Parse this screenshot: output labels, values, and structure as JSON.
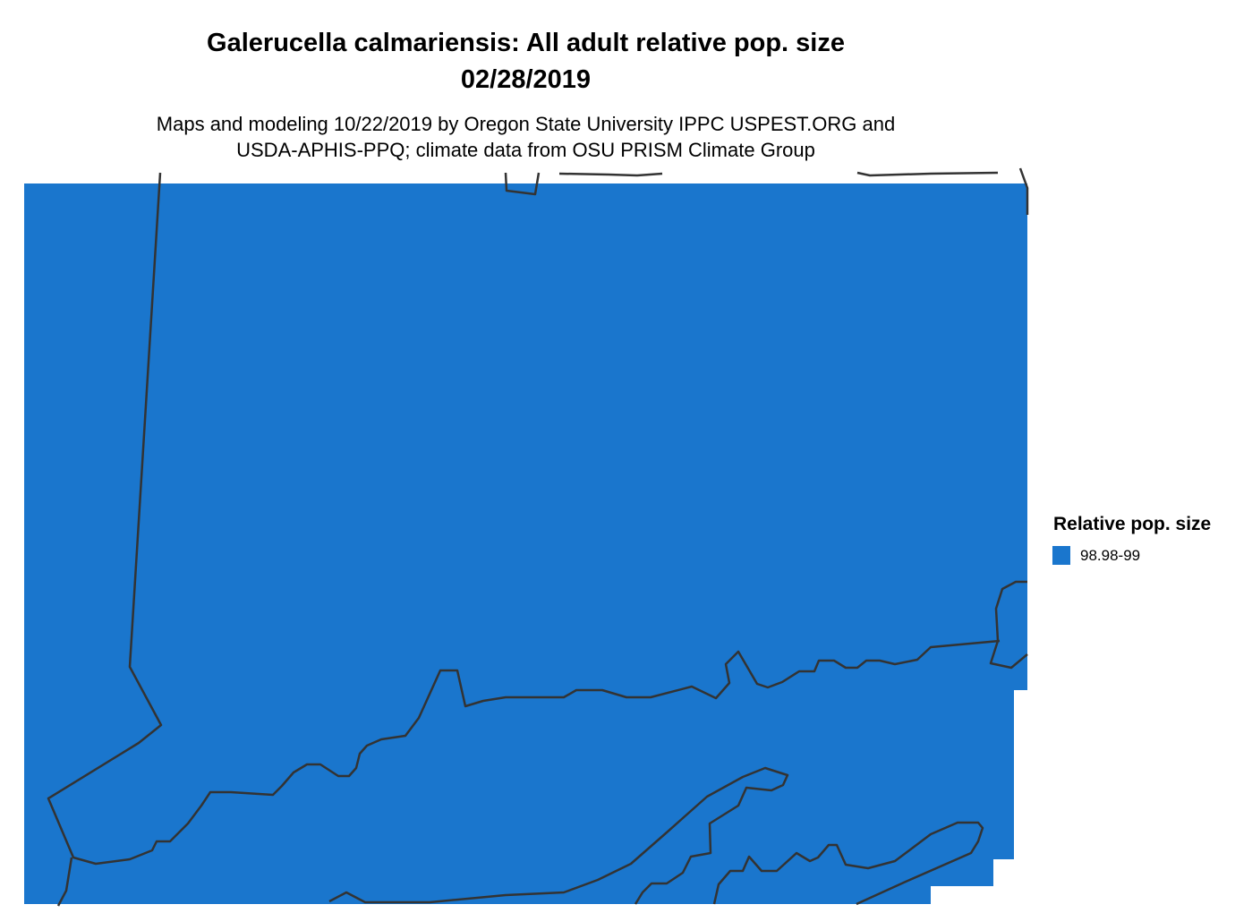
{
  "title_line1": "Galerucella calmariensis: All adult relative pop. size",
  "title_line2": "02/28/2019",
  "subtitle_line1": "Maps and modeling 10/22/2019 by Oregon State University IPPC USPEST.ORG and",
  "subtitle_line2": "USDA-APHIS-PPQ; climate data from OSU PRISM Climate Group",
  "legend": {
    "title": "Relative pop. size",
    "items": [
      {
        "label": "98.98-99",
        "color": "#1a76cd"
      }
    ]
  },
  "colors": {
    "fill": "#1a76cd",
    "boundary": "#333333"
  }
}
